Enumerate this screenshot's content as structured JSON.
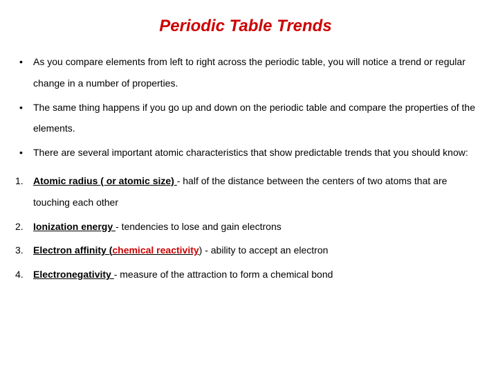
{
  "title": "Periodic Table Trends",
  "colors": {
    "title_color": "#cc0000",
    "text_color": "#000000",
    "accent_red": "#cc0000",
    "background": "#ffffff"
  },
  "typography": {
    "title_fontsize": 24,
    "body_fontsize": 14,
    "title_weight": "bold",
    "title_style": "italic",
    "line_height": 2.2,
    "font_family": "Arial"
  },
  "bullets": [
    "As you compare elements from left to right across the periodic table, you will notice a trend or regular change in a number of properties.",
    "The same thing happens if you go up and down on the periodic table and compare the properties of the elements.",
    "There are several important atomic characteristics that show predictable trends that you should know:"
  ],
  "numbered": [
    {
      "term": "Atomic radius ( or atomic size) ",
      "desc": "- half of the distance between the centers of two atoms that are touching each other"
    },
    {
      "term": "Ionization energy ",
      "desc": "-  tendencies to lose and gain electrons"
    },
    {
      "term_prefix": "Electron affinity ",
      "paren_open": "(",
      "paren_red": "chemical reactivity",
      "paren_close_and_desc": ") - ability to accept an electron"
    },
    {
      "term": "Electronegativity ",
      "desc": "- measure of the attraction to form a chemical bond"
    }
  ]
}
